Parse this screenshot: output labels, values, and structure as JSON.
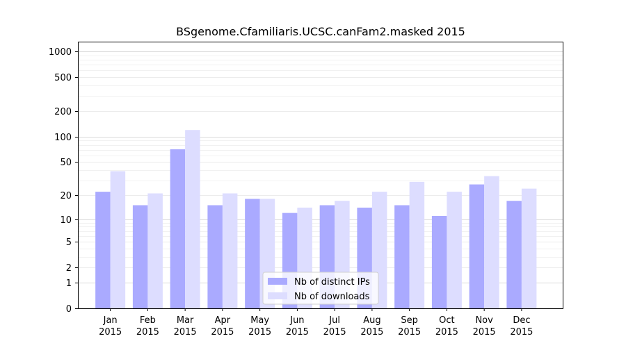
{
  "chart_data": {
    "type": "bar",
    "title": "BSgenome.Cfamiliaris.UCSC.canFam2.masked 2015",
    "xlabel": "",
    "ylabel": "",
    "y_scale": "log1p",
    "yticks": [
      0,
      1,
      2,
      5,
      10,
      20,
      50,
      100,
      200,
      500,
      1000
    ],
    "grid": "horizontal",
    "legend_position": "bottom-center",
    "categories": [
      [
        "Jan",
        "2015"
      ],
      [
        "Feb",
        "2015"
      ],
      [
        "Mar",
        "2015"
      ],
      [
        "Apr",
        "2015"
      ],
      [
        "May",
        "2015"
      ],
      [
        "Jun",
        "2015"
      ],
      [
        "Jul",
        "2015"
      ],
      [
        "Aug",
        "2015"
      ],
      [
        "Sep",
        "2015"
      ],
      [
        "Oct",
        "2015"
      ],
      [
        "Nov",
        "2015"
      ],
      [
        "Dec",
        "2015"
      ]
    ],
    "series": [
      {
        "name": "Nb of distinct IPs",
        "color": "#aaaaff",
        "values": [
          22,
          15,
          71,
          15,
          18,
          12,
          15,
          14,
          15,
          11,
          27,
          17
        ]
      },
      {
        "name": "Nb of downloads",
        "color": "#ddddff",
        "values": [
          39,
          21,
          120,
          21,
          18,
          14,
          17,
          22,
          29,
          22,
          34,
          24
        ]
      }
    ]
  }
}
